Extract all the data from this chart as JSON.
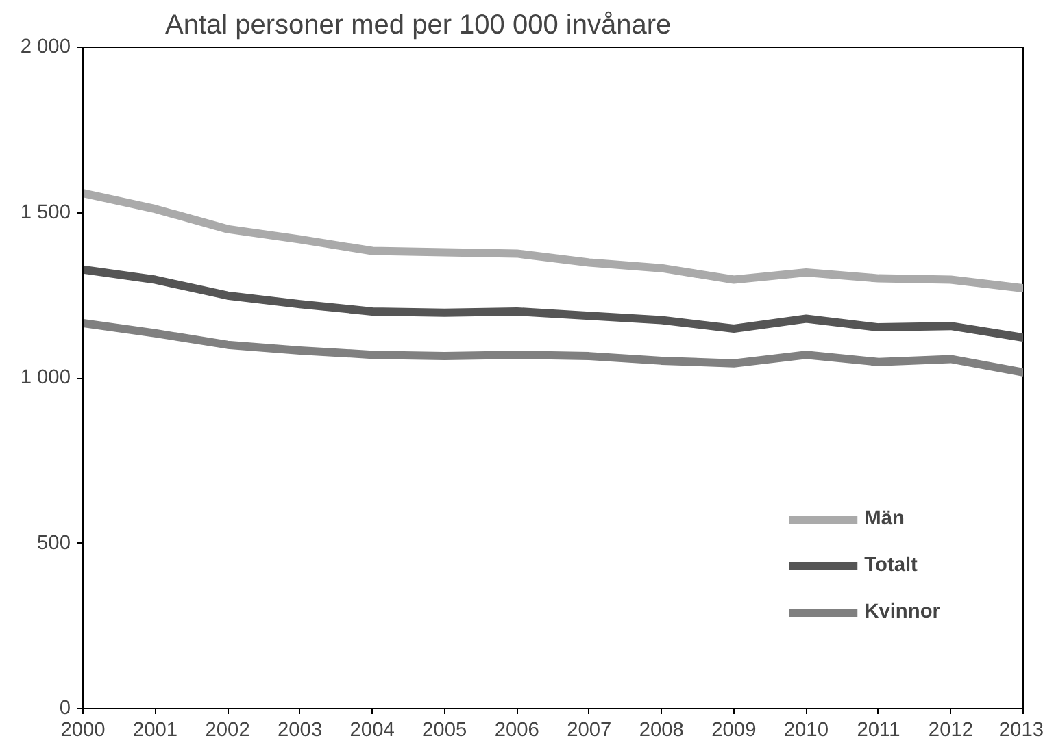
{
  "chart_data": {
    "type": "line",
    "title": "Antal personer med per 100 000 invånare",
    "x": [
      2000,
      2001,
      2002,
      2003,
      2004,
      2005,
      2006,
      2007,
      2008,
      2009,
      2010,
      2011,
      2012,
      2013
    ],
    "xlim": [
      2000,
      2013
    ],
    "xticks": [
      2000,
      2001,
      2002,
      2003,
      2004,
      2005,
      2006,
      2007,
      2008,
      2009,
      2010,
      2011,
      2012,
      2013
    ],
    "ylim": [
      0,
      2000
    ],
    "yticks": [
      0,
      500,
      {
        "value": 1000,
        "label": "1 000"
      },
      {
        "value": 1500,
        "label": "1 500"
      },
      {
        "value": 2000,
        "label": "2 000"
      }
    ],
    "grid": false,
    "legend": "bottom right",
    "marker": "none",
    "line_style": "solid",
    "series": [
      {
        "name": "Män",
        "color": "#aaaaaa",
        "values": [
          1559,
          1511,
          1450,
          1419,
          1384,
          1380,
          1376,
          1349,
          1332,
          1297,
          1319,
          1301,
          1297,
          1271
        ]
      },
      {
        "name": "Totalt",
        "color": "#555555",
        "values": [
          1328,
          1297,
          1249,
          1223,
          1201,
          1197,
          1201,
          1188,
          1175,
          1149,
          1179,
          1153,
          1157,
          1122
        ]
      },
      {
        "name": "Kvinnor",
        "color": "#808080",
        "values": [
          1166,
          1135,
          1100,
          1083,
          1070,
          1066,
          1070,
          1066,
          1052,
          1044,
          1070,
          1048,
          1057,
          1017
        ]
      }
    ]
  }
}
